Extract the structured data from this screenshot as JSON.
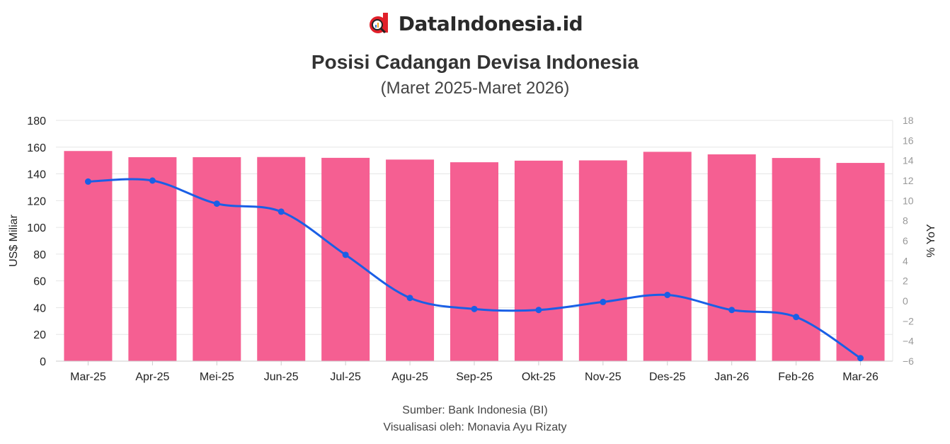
{
  "brand": {
    "name": "DataIndonesia.id",
    "color": "#e0202a"
  },
  "footer": {
    "source": "Sumber: Bank Indonesia (BI)",
    "credit": "Visualisasi oleh: Monavia Ayu Rizaty"
  },
  "chart_data": {
    "type": "bar+line",
    "title": "Posisi Cadangan Devisa Indonesia",
    "subtitle": "(Maret 2025-Maret 2026)",
    "categories": [
      "Mar-25",
      "Apr-25",
      "Mei-25",
      "Jun-25",
      "Jul-25",
      "Agu-25",
      "Sep-25",
      "Okt-25",
      "Nov-25",
      "Des-25",
      "Jan-26",
      "Feb-26",
      "Mar-26"
    ],
    "series": [
      {
        "name": "Cadangan Devisa (US$ Miliar)",
        "type": "bar",
        "axis": "left",
        "color": "#f55f92",
        "values": [
          157.1,
          152.5,
          152.5,
          152.6,
          152.0,
          150.7,
          148.7,
          149.9,
          150.1,
          156.5,
          154.6,
          151.9,
          148.2
        ]
      },
      {
        "name": "% YoY",
        "type": "line",
        "axis": "right",
        "color": "#1a5fe6",
        "values": [
          11.9,
          12.0,
          9.7,
          8.9,
          4.6,
          0.3,
          -0.8,
          -0.9,
          -0.1,
          0.6,
          -0.9,
          -1.6,
          -5.7
        ]
      }
    ],
    "ylabel": "US$ Miliar",
    "ylabel_right": "% YoY",
    "ylim": [
      0,
      180
    ],
    "yticks": [
      0,
      20,
      40,
      60,
      80,
      100,
      120,
      140,
      160,
      180
    ],
    "ylim_right": [
      -6,
      18
    ],
    "yticks_right": [
      -6,
      -4,
      -2,
      0,
      2,
      4,
      6,
      8,
      10,
      12,
      14,
      16,
      18
    ],
    "grid": true
  }
}
